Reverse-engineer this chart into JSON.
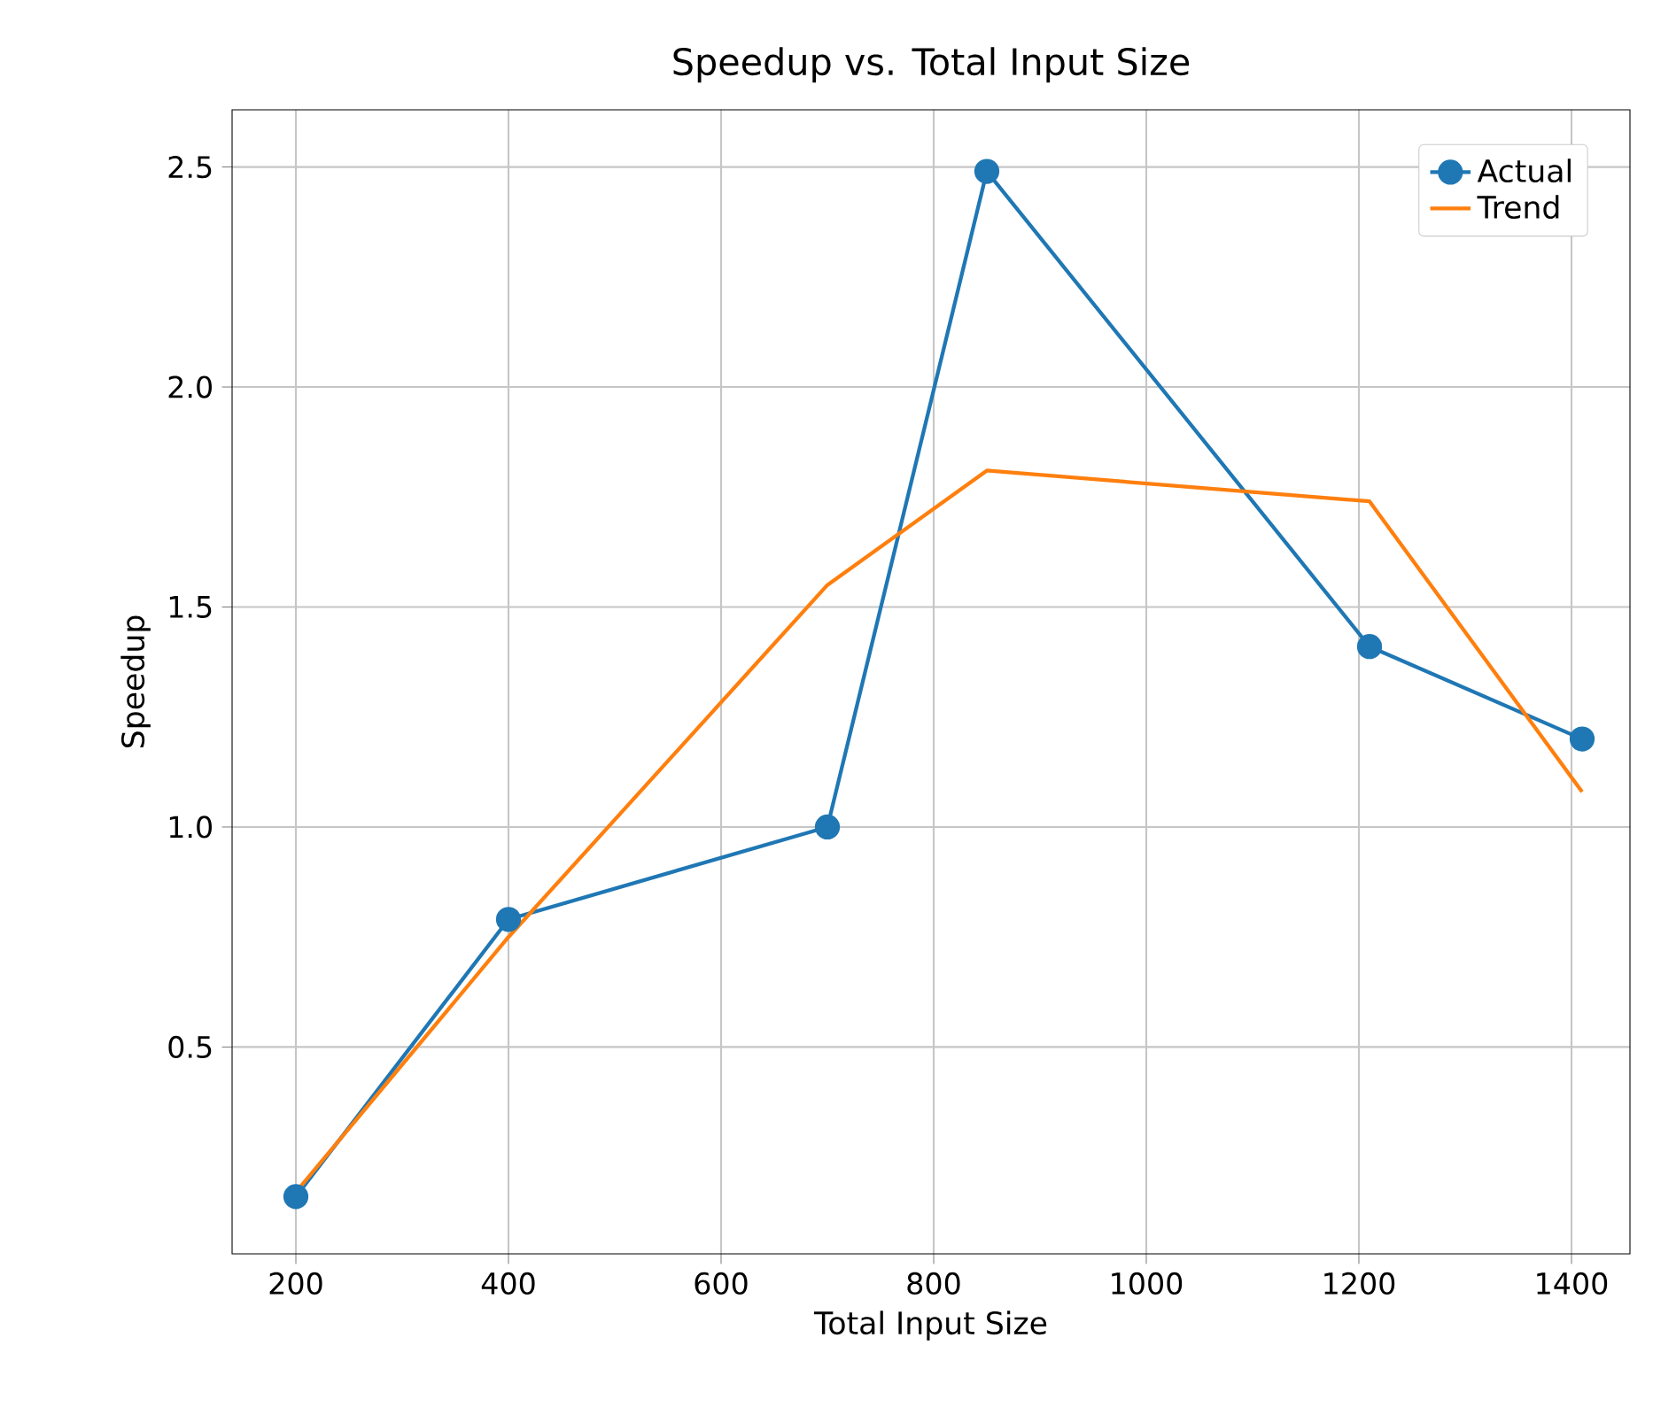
{
  "chart_data": {
    "type": "line",
    "title": "Speedup vs. Total Input Size",
    "xlabel": "Total Input Size",
    "ylabel": "Speedup",
    "x": [
      200,
      400,
      700,
      850,
      1210,
      1410
    ],
    "series": [
      {
        "name": "Actual",
        "color": "#1f77b4",
        "marker": "circle",
        "values": [
          0.16,
          0.79,
          1.0,
          2.49,
          1.41,
          1.2
        ]
      },
      {
        "name": "Trend",
        "color": "#ff7f0e",
        "marker": "none",
        "values": [
          0.17,
          0.75,
          1.55,
          1.81,
          1.74,
          1.08
        ]
      }
    ],
    "xlim": [
      140,
      1455
    ],
    "ylim": [
      0.03,
      2.63
    ],
    "xticks": [
      200,
      400,
      600,
      800,
      1000,
      1200,
      1400
    ],
    "yticks": [
      {
        "value": 0.5,
        "label": "0.5"
      },
      {
        "value": 1.0,
        "label": "1.0"
      },
      {
        "value": 1.5,
        "label": "1.5"
      },
      {
        "value": 2.0,
        "label": "2.0"
      },
      {
        "value": 2.5,
        "label": "2.5"
      }
    ],
    "grid": true,
    "legend": "top right"
  }
}
